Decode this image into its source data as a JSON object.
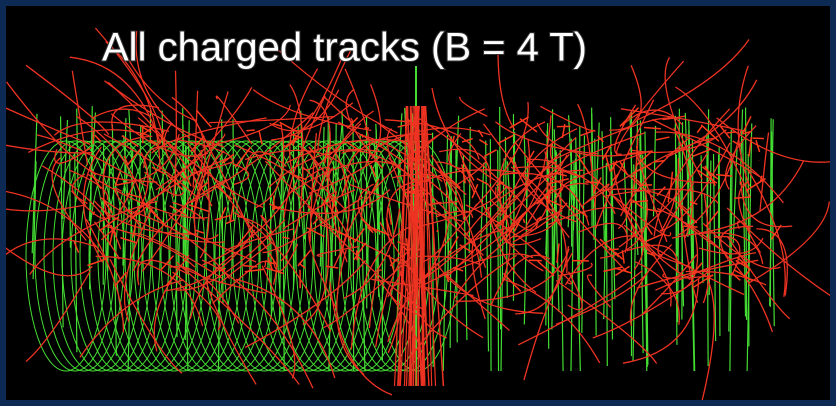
{
  "image": {
    "caption": "All charged tracks (B = 4 T)"
  }
}
